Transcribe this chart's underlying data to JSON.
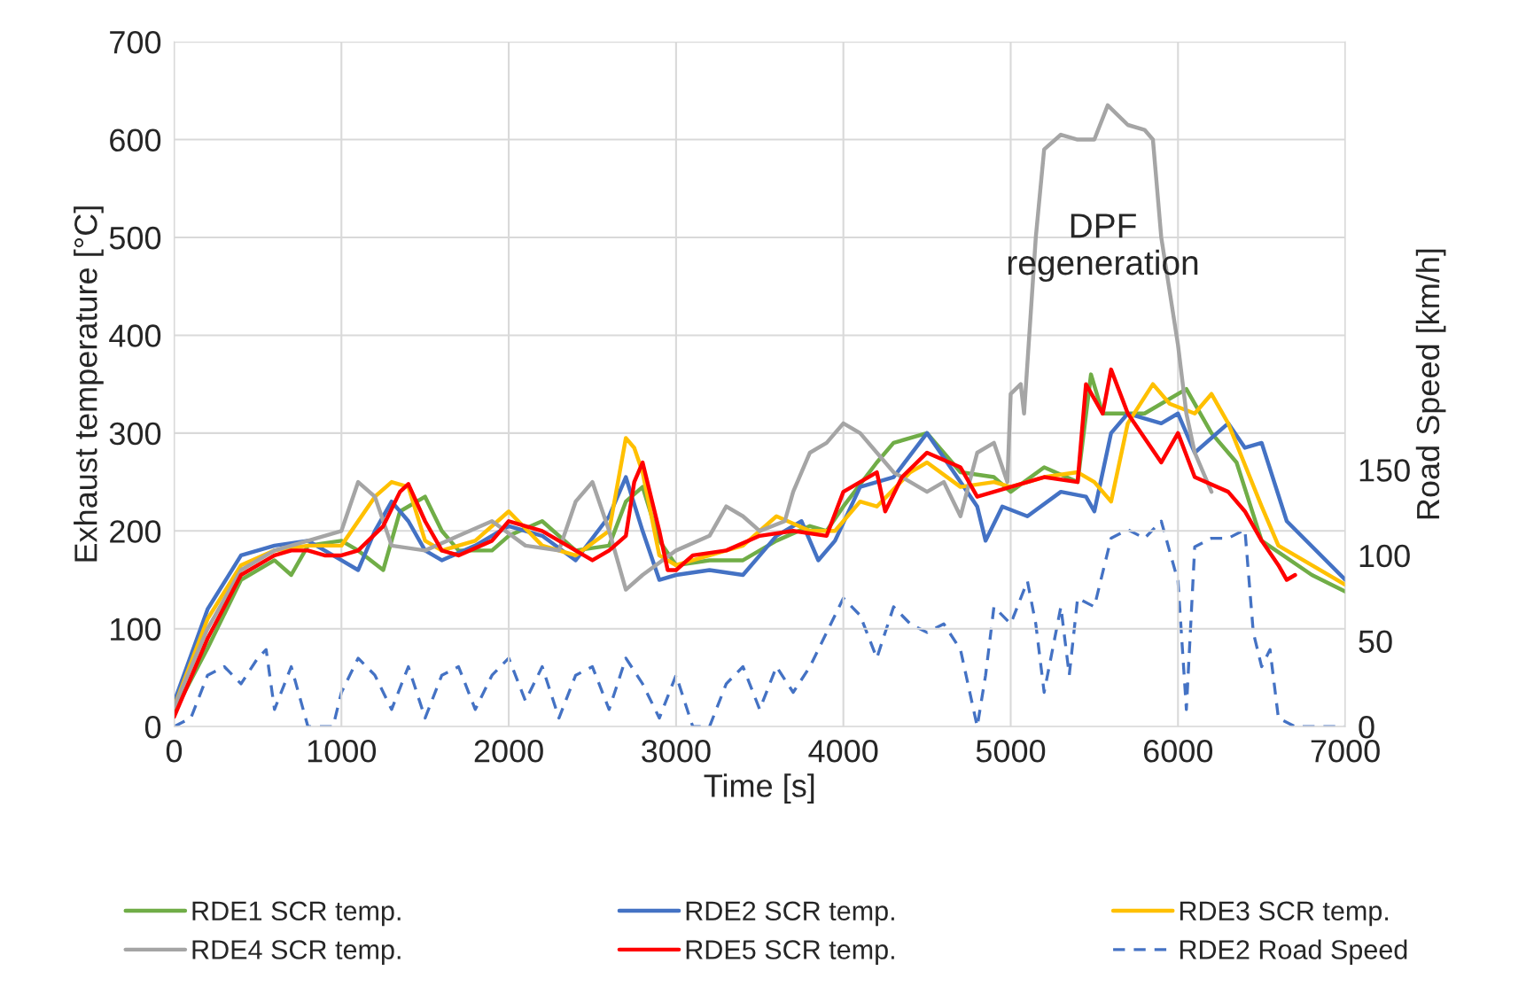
{
  "chart_data": {
    "type": "line",
    "xlabel": "Time [s]",
    "ylabel": "Exhaust temperature [°C]",
    "y2label": "Road Speed [km/h]",
    "xlim": [
      0,
      7000
    ],
    "xticks": [
      0,
      1000,
      2000,
      3000,
      4000,
      5000,
      6000,
      7000
    ],
    "ylim": [
      0,
      700
    ],
    "yticks": [
      0,
      100,
      200,
      300,
      400,
      500,
      600,
      700
    ],
    "y2lim": [
      0,
      400
    ],
    "y2ticks": [
      0,
      50,
      100,
      150
    ],
    "grid": true,
    "legend": "bottom",
    "line_style": "solid",
    "annotations": [
      "DPF\nregeneration"
    ],
    "series": [
      {
        "name": "RDE1 SCR temp.",
        "color": "#70ad47",
        "x": [
          0,
          200,
          400,
          600,
          700,
          800,
          1000,
          1100,
          1250,
          1350,
          1500,
          1600,
          1700,
          1900,
          2000,
          2200,
          2400,
          2600,
          2700,
          2800,
          2900,
          3000,
          3200,
          3400,
          3600,
          3800,
          3900,
          4000,
          4200,
          4300,
          4500,
          4700,
          4900,
          5000,
          5200,
          5400,
          5480,
          5550,
          5800,
          6050,
          6200,
          6350,
          6500,
          6800,
          7000
        ],
        "values": [
          15,
          80,
          150,
          170,
          155,
          185,
          190,
          180,
          160,
          220,
          235,
          200,
          180,
          180,
          195,
          210,
          180,
          185,
          230,
          245,
          190,
          165,
          170,
          170,
          190,
          205,
          200,
          225,
          270,
          290,
          300,
          260,
          255,
          240,
          265,
          250,
          360,
          320,
          320,
          345,
          300,
          270,
          190,
          155,
          138
        ]
      },
      {
        "name": "RDE2 SCR temp.",
        "color": "#4472c4",
        "x": [
          0,
          200,
          400,
          600,
          800,
          1000,
          1100,
          1200,
          1300,
          1400,
          1500,
          1600,
          1800,
          2000,
          2200,
          2400,
          2600,
          2700,
          2800,
          2900,
          3000,
          3200,
          3400,
          3600,
          3750,
          3850,
          3950,
          4100,
          4300,
          4500,
          4700,
          4800,
          4850,
          4950,
          5100,
          5300,
          5450,
          5500,
          5600,
          5700,
          5900,
          6000,
          6100,
          6300,
          6400,
          6500,
          6650,
          7000
        ],
        "values": [
          25,
          120,
          175,
          185,
          190,
          170,
          160,
          200,
          230,
          210,
          180,
          170,
          185,
          205,
          195,
          170,
          215,
          255,
          200,
          150,
          155,
          160,
          155,
          195,
          210,
          170,
          190,
          245,
          255,
          300,
          250,
          225,
          190,
          225,
          215,
          240,
          235,
          220,
          300,
          320,
          310,
          320,
          280,
          310,
          285,
          290,
          210,
          150
        ]
      },
      {
        "name": "RDE3 SCR temp.",
        "color": "#ffc000",
        "x": [
          0,
          200,
          400,
          600,
          800,
          1000,
          1200,
          1300,
          1400,
          1500,
          1600,
          1800,
          2000,
          2200,
          2400,
          2600,
          2700,
          2750,
          2800,
          2900,
          3000,
          3200,
          3400,
          3600,
          3800,
          3950,
          4100,
          4200,
          4400,
          4500,
          4700,
          4900,
          5000,
          5200,
          5400,
          5500,
          5600,
          5700,
          5850,
          5950,
          6100,
          6200,
          6300,
          6500,
          6600,
          7000
        ],
        "values": [
          20,
          110,
          165,
          180,
          185,
          185,
          235,
          250,
          245,
          190,
          180,
          190,
          220,
          185,
          175,
          200,
          295,
          285,
          260,
          175,
          165,
          175,
          185,
          215,
          200,
          200,
          230,
          225,
          260,
          270,
          245,
          250,
          245,
          255,
          260,
          250,
          230,
          310,
          350,
          330,
          320,
          340,
          310,
          225,
          185,
          145
        ]
      },
      {
        "name": "RDE4 SCR temp.",
        "color": "#a5a5a5",
        "x": [
          0,
          200,
          400,
          600,
          800,
          1000,
          1100,
          1200,
          1300,
          1500,
          1700,
          1900,
          2100,
          2300,
          2400,
          2500,
          2600,
          2700,
          2800,
          3000,
          3200,
          3300,
          3400,
          3500,
          3650,
          3700,
          3800,
          3900,
          4000,
          4100,
          4300,
          4500,
          4600,
          4700,
          4800,
          4900,
          4980,
          5000,
          5060,
          5080,
          5150,
          5200,
          5300,
          5400,
          5500,
          5580,
          5700,
          5800,
          5850,
          5900,
          6000,
          6050,
          6100,
          6200
        ],
        "values": [
          20,
          100,
          160,
          180,
          190,
          200,
          250,
          235,
          185,
          180,
          195,
          210,
          185,
          180,
          230,
          250,
          200,
          140,
          155,
          180,
          195,
          225,
          215,
          200,
          210,
          240,
          280,
          290,
          310,
          300,
          260,
          240,
          250,
          215,
          280,
          290,
          250,
          340,
          350,
          320,
          500,
          590,
          605,
          600,
          600,
          635,
          615,
          610,
          600,
          500,
          390,
          320,
          280,
          240
        ]
      },
      {
        "name": "RDE5 SCR temp.",
        "color": "#ff0000",
        "x": [
          0,
          200,
          400,
          600,
          700,
          800,
          900,
          1000,
          1100,
          1250,
          1350,
          1400,
          1500,
          1600,
          1700,
          1900,
          2000,
          2200,
          2400,
          2500,
          2600,
          2700,
          2750,
          2800,
          2900,
          2950,
          3000,
          3100,
          3300,
          3500,
          3700,
          3900,
          4000,
          4200,
          4250,
          4350,
          4500,
          4700,
          4800,
          5000,
          5200,
          5400,
          5450,
          5550,
          5600,
          5700,
          5900,
          6000,
          6100,
          6300,
          6400,
          6500,
          6600,
          6650,
          6700
        ],
        "values": [
          10,
          90,
          155,
          175,
          180,
          180,
          175,
          175,
          180,
          205,
          240,
          248,
          210,
          180,
          175,
          190,
          210,
          200,
          180,
          170,
          180,
          195,
          250,
          270,
          200,
          160,
          160,
          175,
          180,
          195,
          200,
          195,
          240,
          260,
          220,
          255,
          280,
          265,
          235,
          245,
          255,
          250,
          350,
          320,
          365,
          320,
          270,
          300,
          255,
          240,
          220,
          190,
          165,
          150,
          155
        ]
      },
      {
        "name": "RDE2 Road Speed",
        "color": "#4472c4",
        "axis": "y2",
        "line_style": "dashed",
        "x": [
          0,
          100,
          200,
          300,
          400,
          500,
          550,
          600,
          700,
          800,
          950,
          1000,
          1100,
          1200,
          1300,
          1400,
          1500,
          1600,
          1700,
          1800,
          1900,
          2000,
          2100,
          2200,
          2300,
          2400,
          2500,
          2600,
          2700,
          2800,
          2900,
          3000,
          3100,
          3200,
          3300,
          3400,
          3500,
          3600,
          3700,
          3800,
          3900,
          4000,
          4100,
          4200,
          4300,
          4400,
          4500,
          4600,
          4700,
          4800,
          4850,
          4900,
          5000,
          5100,
          5150,
          5200,
          5300,
          5350,
          5400,
          5500,
          5600,
          5700,
          5800,
          5900,
          6000,
          6050,
          6100,
          6200,
          6300,
          6400,
          6450,
          6500,
          6550,
          6600,
          6700,
          7000
        ],
        "values": [
          0,
          5,
          30,
          35,
          25,
          40,
          45,
          10,
          35,
          0,
          0,
          20,
          40,
          30,
          10,
          35,
          5,
          30,
          35,
          10,
          30,
          40,
          15,
          35,
          5,
          30,
          35,
          10,
          40,
          25,
          5,
          30,
          0,
          0,
          25,
          35,
          10,
          35,
          20,
          35,
          55,
          75,
          65,
          40,
          70,
          60,
          55,
          60,
          45,
          0,
          30,
          70,
          60,
          85,
          60,
          20,
          70,
          30,
          75,
          70,
          110,
          115,
          110,
          120,
          85,
          10,
          105,
          110,
          110,
          115,
          55,
          35,
          45,
          5,
          0,
          0
        ]
      }
    ]
  }
}
